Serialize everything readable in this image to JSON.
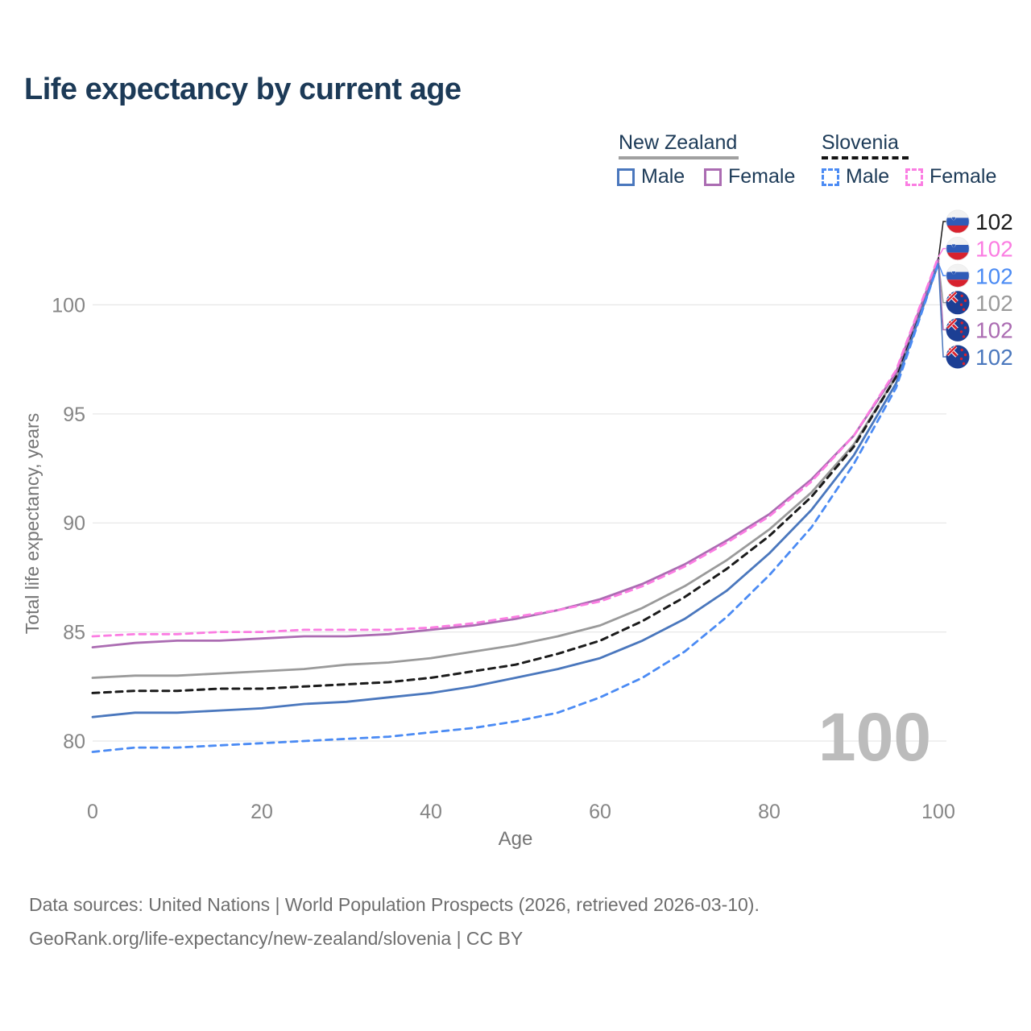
{
  "title": "Life expectancy by current age",
  "legend": {
    "groups": [
      {
        "label": "New Zealand",
        "line_style": "solid",
        "underline_color": "#a0a0a0",
        "items": [
          {
            "label": "Male",
            "color": "#4a77bd",
            "dashed": false
          },
          {
            "label": "Female",
            "color": "#ab6cb2",
            "dashed": false
          }
        ]
      },
      {
        "label": "Slovenia",
        "line_style": "dashed",
        "underline_color": "#141414",
        "items": [
          {
            "label": "Male",
            "color": "#4b8bf4",
            "dashed": true
          },
          {
            "label": "Female",
            "color": "#fb7de2",
            "dashed": true
          }
        ]
      }
    ]
  },
  "chart_data": {
    "type": "line",
    "title": "Life expectancy by current age",
    "xlabel": "Age",
    "ylabel": "Total life expectancy, years",
    "x_ticks": [
      0,
      20,
      40,
      60,
      80,
      100
    ],
    "y_ticks": [
      80,
      85,
      90,
      95,
      100
    ],
    "xlim": [
      0,
      100
    ],
    "ylim": [
      79,
      102.5
    ],
    "grid": "horizontal",
    "x": [
      0,
      5,
      10,
      15,
      20,
      25,
      30,
      35,
      40,
      45,
      50,
      55,
      60,
      65,
      70,
      75,
      80,
      85,
      90,
      95,
      100
    ],
    "series": [
      {
        "name": "New Zealand Total",
        "country": "new-zealand",
        "sex": "total",
        "color": "#9a9a9a",
        "dashed": false,
        "values": [
          82.9,
          83.0,
          83.0,
          83.1,
          83.2,
          83.3,
          83.5,
          83.6,
          83.8,
          84.1,
          84.4,
          84.8,
          85.3,
          86.1,
          87.1,
          88.3,
          89.7,
          91.4,
          93.6,
          96.7,
          102.0
        ]
      },
      {
        "name": "Slovenia Total",
        "country": "slovenia",
        "sex": "total",
        "color": "#1b1b1b",
        "dashed": true,
        "values": [
          82.2,
          82.3,
          82.3,
          82.4,
          82.4,
          82.5,
          82.6,
          82.7,
          82.9,
          83.2,
          83.5,
          84.0,
          84.6,
          85.5,
          86.6,
          87.9,
          89.4,
          91.2,
          93.5,
          96.7,
          102.1
        ]
      },
      {
        "name": "New Zealand Female",
        "country": "new-zealand",
        "sex": "female",
        "color": "#ab6cb2",
        "dashed": false,
        "values": [
          84.3,
          84.5,
          84.6,
          84.6,
          84.7,
          84.8,
          84.8,
          84.9,
          85.1,
          85.3,
          85.6,
          86.0,
          86.5,
          87.2,
          88.1,
          89.2,
          90.4,
          92.0,
          94.0,
          96.9,
          102.1
        ]
      },
      {
        "name": "Slovenia Female",
        "country": "slovenia",
        "sex": "female",
        "color": "#fb7de2",
        "dashed": true,
        "values": [
          84.8,
          84.9,
          84.9,
          85.0,
          85.0,
          85.1,
          85.1,
          85.1,
          85.2,
          85.4,
          85.7,
          86.0,
          86.4,
          87.1,
          88.0,
          89.1,
          90.3,
          91.9,
          94.0,
          97.0,
          102.2
        ]
      },
      {
        "name": "New Zealand Male",
        "country": "new-zealand",
        "sex": "male",
        "color": "#4a77bd",
        "dashed": false,
        "values": [
          81.1,
          81.3,
          81.3,
          81.4,
          81.5,
          81.7,
          81.8,
          82.0,
          82.2,
          82.5,
          82.9,
          83.3,
          83.8,
          84.6,
          85.6,
          86.9,
          88.6,
          90.6,
          93.1,
          96.4,
          101.9
        ]
      },
      {
        "name": "Slovenia Male",
        "country": "slovenia",
        "sex": "male",
        "color": "#4b8bf4",
        "dashed": true,
        "values": [
          79.5,
          79.7,
          79.7,
          79.8,
          79.9,
          80.0,
          80.1,
          80.2,
          80.4,
          80.6,
          80.9,
          81.3,
          82.0,
          82.9,
          84.1,
          85.7,
          87.6,
          89.8,
          92.7,
          96.2,
          101.9
        ]
      }
    ],
    "end_labels": [
      {
        "value": "102",
        "color": "#1b1b1b",
        "flag": "slovenia",
        "series": "Slovenia Total"
      },
      {
        "value": "102",
        "color": "#fb7de2",
        "flag": "slovenia",
        "series": "Slovenia Female"
      },
      {
        "value": "102",
        "color": "#4b8bf4",
        "flag": "slovenia",
        "series": "Slovenia Male"
      },
      {
        "value": "102",
        "color": "#9a9a9a",
        "flag": "new-zealand",
        "series": "New Zealand Total"
      },
      {
        "value": "102",
        "color": "#ab6cb2",
        "flag": "new-zealand",
        "series": "New Zealand Female"
      },
      {
        "value": "102",
        "color": "#4a77bd",
        "flag": "new-zealand",
        "series": "New Zealand Male"
      }
    ],
    "annotations": [
      {
        "text": "100",
        "role": "age-counter-watermark",
        "color": "#bcbcbc"
      }
    ]
  },
  "watermark": "100",
  "footer": {
    "line1": "Data sources: United Nations | World Population Prospects (2026, retrieved 2026-03-10).",
    "line2": "GeoRank.org/life-expectancy/new-zealand/slovenia | CC BY"
  },
  "colors": {
    "title_text": "#1c3a57",
    "axis_text": "#868686",
    "gridline": "#e7e7e7",
    "footer_text": "#6e6e6e",
    "watermark": "#bcbcbc"
  }
}
